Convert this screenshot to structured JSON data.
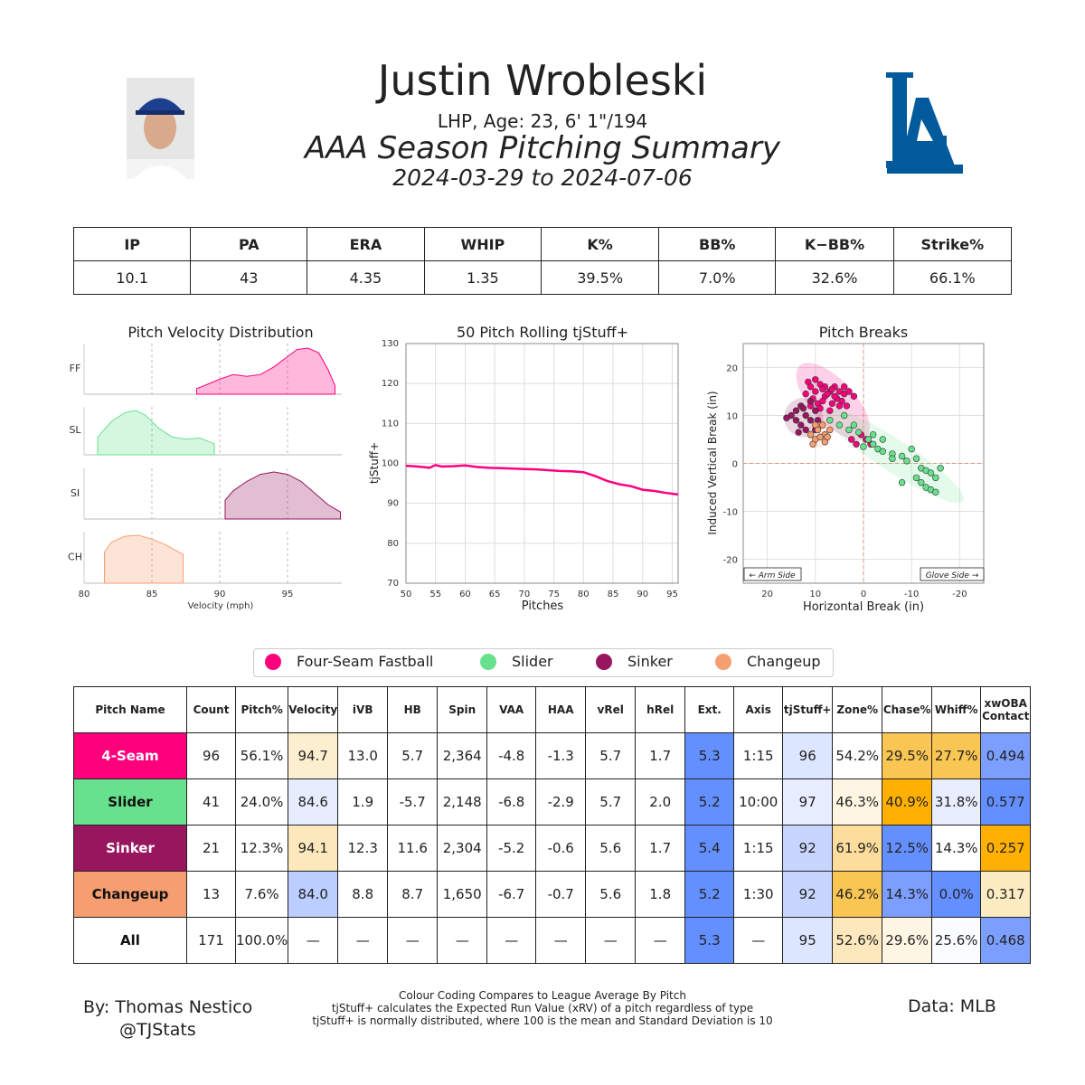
{
  "header": {
    "name": "Justin Wrobleski",
    "info": "LHP, Age: 23, 6' 1\"/194",
    "summary": "AAA Season Pitching Summary",
    "dates": "2024-03-29 to 2024-07-06",
    "team_logo": "LA",
    "team_color": "#005A9C"
  },
  "stats": {
    "headers": [
      "IP",
      "PA",
      "ERA",
      "WHIP",
      "K%",
      "BB%",
      "K−BB%",
      "Strike%"
    ],
    "values": [
      "10.1",
      "43",
      "4.35",
      "1.35",
      "39.5%",
      "7.0%",
      "32.6%",
      "66.1%"
    ]
  },
  "colors": {
    "FF": "#FF007D",
    "SL": "#67E18D",
    "SI": "#98165D",
    "CH": "#F79E70"
  },
  "chart_data": [
    {
      "type": "area",
      "title": "Pitch Velocity Distribution",
      "xlabel": "Velocity (mph)",
      "ylabel": "",
      "xlim": [
        80,
        99
      ],
      "xticks": [
        80,
        85,
        90,
        95
      ],
      "series": [
        {
          "name": "FF",
          "x": [
            88.3,
            89.0,
            90.0,
            91.0,
            92.0,
            93.0,
            94.0,
            95.0,
            95.7,
            96.5,
            97.3,
            98.0,
            98.5
          ],
          "y": [
            0.12,
            0.2,
            0.32,
            0.42,
            0.38,
            0.42,
            0.58,
            0.8,
            0.95,
            0.98,
            0.88,
            0.52,
            0.18
          ]
        },
        {
          "name": "SL",
          "x": [
            81.0,
            82.0,
            83.0,
            83.8,
            84.5,
            85.5,
            86.5,
            87.5,
            88.5,
            89.6
          ],
          "y": [
            0.4,
            0.75,
            0.95,
            1.0,
            0.9,
            0.6,
            0.4,
            0.35,
            0.38,
            0.25
          ]
        },
        {
          "name": "SI",
          "x": [
            90.4,
            91.0,
            92.0,
            93.0,
            94.0,
            95.0,
            96.0,
            97.0,
            98.0,
            98.9
          ],
          "y": [
            0.4,
            0.6,
            0.8,
            0.95,
            1.0,
            0.95,
            0.8,
            0.55,
            0.3,
            0.15
          ]
        },
        {
          "name": "CH",
          "x": [
            81.5,
            82.0,
            83.0,
            84.0,
            85.0,
            86.0,
            87.3
          ],
          "y": [
            0.65,
            0.85,
            0.98,
            1.0,
            0.92,
            0.8,
            0.6
          ]
        }
      ]
    },
    {
      "type": "line",
      "title": "50 Pitch Rolling tjStuff+",
      "xlabel": "Pitches",
      "ylabel": "tjStuff+",
      "xlim": [
        50,
        96
      ],
      "ylim": [
        70,
        130
      ],
      "xticks": [
        50,
        55,
        60,
        65,
        70,
        75,
        80,
        85,
        90,
        95
      ],
      "yticks": [
        70,
        80,
        90,
        100,
        110,
        120,
        130
      ],
      "series": [
        {
          "name": "",
          "x": [
            50,
            52,
            54,
            55,
            56,
            58,
            60,
            62,
            64,
            66,
            68,
            70,
            72,
            74,
            76,
            78,
            80,
            82,
            84,
            86,
            88,
            90,
            92,
            94,
            96
          ],
          "y": [
            99.4,
            99.2,
            98.9,
            99.6,
            99.2,
            99.3,
            99.5,
            99.1,
            98.9,
            98.8,
            98.7,
            98.6,
            98.5,
            98.3,
            98.1,
            98.0,
            97.8,
            96.8,
            95.6,
            94.8,
            94.3,
            93.4,
            93.1,
            92.6,
            92.2
          ]
        }
      ]
    },
    {
      "type": "scatter",
      "title": "Pitch Breaks",
      "xlabel": "Horizontal Break (in)",
      "ylabel": "Induced Vertical Break (in)",
      "xlim": [
        25,
        -25
      ],
      "ylim": [
        -25,
        25
      ],
      "xticks": [
        20,
        10,
        0,
        -10,
        -20
      ],
      "yticks": [
        20,
        10,
        0,
        -10,
        -20
      ],
      "annotations": [
        "← Arm Side",
        "Glove Side →"
      ],
      "series": [
        {
          "name": "FF",
          "points": [
            [
              11.5,
              17
            ],
            [
              11,
              16
            ],
            [
              10,
              15
            ],
            [
              9,
              16.5
            ],
            [
              8,
              14
            ],
            [
              7,
              15
            ],
            [
              6,
              16
            ],
            [
              5,
              15
            ],
            [
              4,
              14.5
            ],
            [
              3,
              15
            ],
            [
              10.5,
              13.5
            ],
            [
              9.5,
              12.5
            ],
            [
              8.5,
              13
            ],
            [
              7.5,
              14.5
            ],
            [
              6.5,
              12.5
            ],
            [
              5.5,
              13.5
            ],
            [
              4.5,
              13
            ],
            [
              3.5,
              12
            ],
            [
              9,
              11.5
            ],
            [
              7,
              11
            ],
            [
              12,
              14.5
            ],
            [
              11,
              12
            ],
            [
              6,
              14
            ],
            [
              8,
              16
            ],
            [
              10,
              17.5
            ],
            [
              5,
              12
            ],
            [
              2.5,
              5
            ],
            [
              1.5,
              4
            ],
            [
              0.5,
              6
            ],
            [
              -0.5,
              5
            ],
            [
              -1.5,
              4
            ],
            [
              4,
              16
            ],
            [
              2,
              14
            ],
            [
              6.5,
              15.5
            ],
            [
              8.5,
              15.5
            ]
          ]
        },
        {
          "name": "SL",
          "points": [
            [
              7,
              9
            ],
            [
              5,
              8
            ],
            [
              3,
              7
            ],
            [
              1,
              6.5
            ],
            [
              -1,
              5
            ],
            [
              -2,
              4
            ],
            [
              -3,
              3
            ],
            [
              -4,
              2.5
            ],
            [
              -6,
              2
            ],
            [
              -8,
              1.5
            ],
            [
              -9,
              0.5
            ],
            [
              -10,
              3
            ],
            [
              -11,
              1
            ],
            [
              -12,
              -1
            ],
            [
              -13,
              -1.5
            ],
            [
              -14,
              -2
            ],
            [
              -15,
              -3
            ],
            [
              -13,
              -5
            ],
            [
              -14,
              -5.5
            ],
            [
              -11,
              -3
            ],
            [
              -8,
              -4
            ],
            [
              -6,
              1
            ],
            [
              -4,
              5
            ],
            [
              -2,
              6
            ],
            [
              0,
              3.5
            ],
            [
              2,
              8
            ],
            [
              4,
              10
            ],
            [
              -16,
              -1
            ],
            [
              -12,
              -4
            ],
            [
              -15,
              -6
            ]
          ]
        },
        {
          "name": "SI",
          "points": [
            [
              15,
              10
            ],
            [
              14,
              11
            ],
            [
              13,
              8
            ],
            [
              12,
              10
            ],
            [
              13,
              12
            ],
            [
              11,
              9
            ],
            [
              10,
              11
            ],
            [
              12,
              7
            ],
            [
              14,
              9
            ],
            [
              11,
              13
            ],
            [
              10,
              7
            ],
            [
              16,
              9.5
            ],
            [
              13.5,
              6.5
            ],
            [
              12.5,
              11.5
            ],
            [
              9.5,
              9
            ]
          ]
        },
        {
          "name": "CH",
          "points": [
            [
              9,
              8
            ],
            [
              10,
              5
            ],
            [
              8,
              6
            ],
            [
              10,
              8
            ],
            [
              9,
              5.5
            ],
            [
              7,
              7
            ],
            [
              8,
              4.5
            ],
            [
              11,
              6
            ],
            [
              9.5,
              7
            ],
            [
              7.5,
              5.5
            ],
            [
              8.5,
              8
            ],
            [
              10.5,
              4
            ]
          ]
        }
      ]
    }
  ],
  "legend": [
    "Four-Seam Fastball",
    "Slider",
    "Sinker",
    "Changeup"
  ],
  "pitch_table": {
    "headers": [
      "Pitch Name",
      "Count",
      "Pitch%",
      "Velocity",
      "iVB",
      "HB",
      "Spin",
      "VAA",
      "HAA",
      "vRel",
      "hRel",
      "Ext.",
      "Axis",
      "tjStuff+",
      "Zone%",
      "Chase%",
      "Whiff%",
      "xwOBA Contact"
    ],
    "rows": [
      {
        "name": "4-Seam",
        "color": "#FF007D",
        "text_color": "#ffffff",
        "cells": [
          "96",
          "56.1%",
          "94.7",
          "13.0",
          "5.7",
          "2,364",
          "-4.8",
          "-1.3",
          "5.7",
          "1.7",
          "5.3",
          "1:15",
          "96",
          "54.2%",
          "29.5%",
          "27.7%",
          "0.494"
        ],
        "bg": [
          "#fff",
          "#fff",
          "#FCEFCF",
          "#fff",
          "#fff",
          "#fff",
          "#fff",
          "#fff",
          "#fff",
          "#fff",
          "#648FFF",
          "#fff",
          "#DCE6FF",
          "#fff",
          "#F9C553",
          "#F9C553",
          "#7C9FFF"
        ]
      },
      {
        "name": "Slider",
        "color": "#67E18D",
        "text_color": "#111111",
        "cells": [
          "41",
          "24.0%",
          "84.6",
          "1.9",
          "-5.7",
          "2,148",
          "-6.8",
          "-2.9",
          "5.7",
          "2.0",
          "5.2",
          "10:00",
          "97",
          "46.3%",
          "40.9%",
          "31.8%",
          "0.577"
        ],
        "bg": [
          "#fff",
          "#fff",
          "#E6EDFF",
          "#fff",
          "#fff",
          "#fff",
          "#fff",
          "#fff",
          "#fff",
          "#fff",
          "#648FFF",
          "#fff",
          "#E8EEFF",
          "#FEF6E3",
          "#FFB000",
          "#E8EEFF",
          "#648FFF"
        ]
      },
      {
        "name": "Sinker",
        "color": "#98165D",
        "text_color": "#ffffff",
        "cells": [
          "21",
          "12.3%",
          "94.1",
          "12.3",
          "11.6",
          "2,304",
          "-5.2",
          "-0.6",
          "5.6",
          "1.7",
          "5.4",
          "1:15",
          "92",
          "61.9%",
          "12.5%",
          "14.3%",
          "0.257"
        ],
        "bg": [
          "#fff",
          "#fff",
          "#FCE8BC",
          "#fff",
          "#fff",
          "#fff",
          "#fff",
          "#fff",
          "#fff",
          "#fff",
          "#648FFF",
          "#fff",
          "#C8D6FF",
          "#FCDD9C",
          "#648FFF",
          "#FFFFFF",
          "#FFB000"
        ]
      },
      {
        "name": "Changeup",
        "color": "#F79E70",
        "text_color": "#111111",
        "cells": [
          "13",
          "7.6%",
          "84.0",
          "8.8",
          "8.7",
          "1,650",
          "-6.7",
          "-0.7",
          "5.6",
          "1.8",
          "5.2",
          "1:30",
          "92",
          "46.2%",
          "14.3%",
          "0.0%",
          "0.317"
        ],
        "bg": [
          "#fff",
          "#fff",
          "#BCCEFF",
          "#fff",
          "#fff",
          "#fff",
          "#fff",
          "#fff",
          "#fff",
          "#fff",
          "#648FFF",
          "#fff",
          "#C8D6FF",
          "#F9C553",
          "#7C9FFF",
          "#648FFF",
          "#FDEBC2"
        ]
      },
      {
        "name": "All",
        "color": "#ffffff",
        "text_color": "#111111",
        "cells": [
          "171",
          "100.0%",
          "—",
          "—",
          "—",
          "—",
          "—",
          "—",
          "—",
          "—",
          "5.3",
          "—",
          "95",
          "52.6%",
          "29.6%",
          "25.6%",
          "0.468"
        ],
        "bg": [
          "#fff",
          "#fff",
          "#fff",
          "#fff",
          "#fff",
          "#fff",
          "#fff",
          "#fff",
          "#fff",
          "#fff",
          "#648FFF",
          "#fff",
          "#DCE6FF",
          "#FCE8BC",
          "#FEF6E3",
          "#FBFCFF",
          "#7C9FFF"
        ]
      }
    ]
  },
  "footer": {
    "by": "By: Thomas Nestico",
    "handle": "@TJStats",
    "note1": "Colour Coding Compares to League Average By Pitch",
    "note2": "tjStuff+ calculates the Expected Run Value (xRV) of a pitch regardless of type",
    "note3": "tjStuff+ is normally distributed, where 100 is the mean and Standard Deviation is 10",
    "source": "Data: MLB"
  }
}
